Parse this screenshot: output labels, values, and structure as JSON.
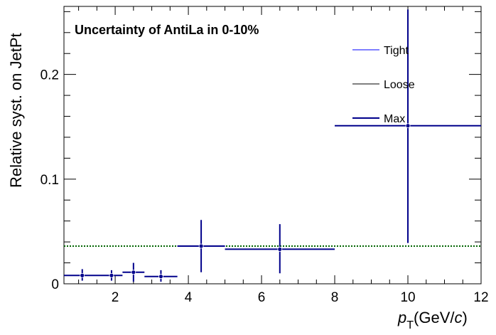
{
  "chart_data": {
    "type": "scatter",
    "title": "Uncertainty of AntiLa in 0-10%",
    "xlabel_main": "p",
    "xlabel_sub": "T",
    "xlabel_units_pre": "(GeV/",
    "xlabel_units_c": "c",
    "xlabel_units_post": ")",
    "ylabel": "Relative syst. on JetPt",
    "xlim": [
      0.6,
      12
    ],
    "ylim": [
      0,
      0.265
    ],
    "x_ticks": [
      2,
      4,
      6,
      8,
      10,
      12
    ],
    "y_ticks": [
      0,
      0.1,
      0.2
    ],
    "x_tick_labels": [
      "2",
      "4",
      "6",
      "8",
      "10",
      "12"
    ],
    "y_tick_labels": [
      "0",
      "0.1",
      "0.2"
    ],
    "reference_line": {
      "y": 0.036,
      "style": "dotted",
      "color": "#006400"
    },
    "legend": [
      {
        "label": "Tight",
        "color": "#0000ff"
      },
      {
        "label": "Loose",
        "color": "#000000"
      },
      {
        "label": "Max",
        "color": "#00008b"
      }
    ],
    "series": [
      {
        "name": "Max",
        "color": "#00008b",
        "points": [
          {
            "x": 1.1,
            "xlow": 0.6,
            "xhigh": 1.6,
            "y": 0.008,
            "ylow": 0.003,
            "yhigh": 0.014
          },
          {
            "x": 1.9,
            "xlow": 1.6,
            "xhigh": 2.2,
            "y": 0.008,
            "ylow": 0.003,
            "yhigh": 0.013
          },
          {
            "x": 2.5,
            "xlow": 2.2,
            "xhigh": 2.8,
            "y": 0.011,
            "ylow": 0.002,
            "yhigh": 0.02
          },
          {
            "x": 3.25,
            "xlow": 2.8,
            "xhigh": 3.7,
            "y": 0.007,
            "ylow": 0.002,
            "yhigh": 0.013
          },
          {
            "x": 4.35,
            "xlow": 3.7,
            "xhigh": 5.0,
            "y": 0.036,
            "ylow": 0.011,
            "yhigh": 0.061
          },
          {
            "x": 6.5,
            "xlow": 5.0,
            "xhigh": 8.0,
            "y": 0.033,
            "ylow": 0.01,
            "yhigh": 0.057
          },
          {
            "x": 10.0,
            "xlow": 8.0,
            "xhigh": 12.0,
            "y": 0.151,
            "ylow": 0.039,
            "yhigh": 0.262
          }
        ]
      }
    ]
  }
}
